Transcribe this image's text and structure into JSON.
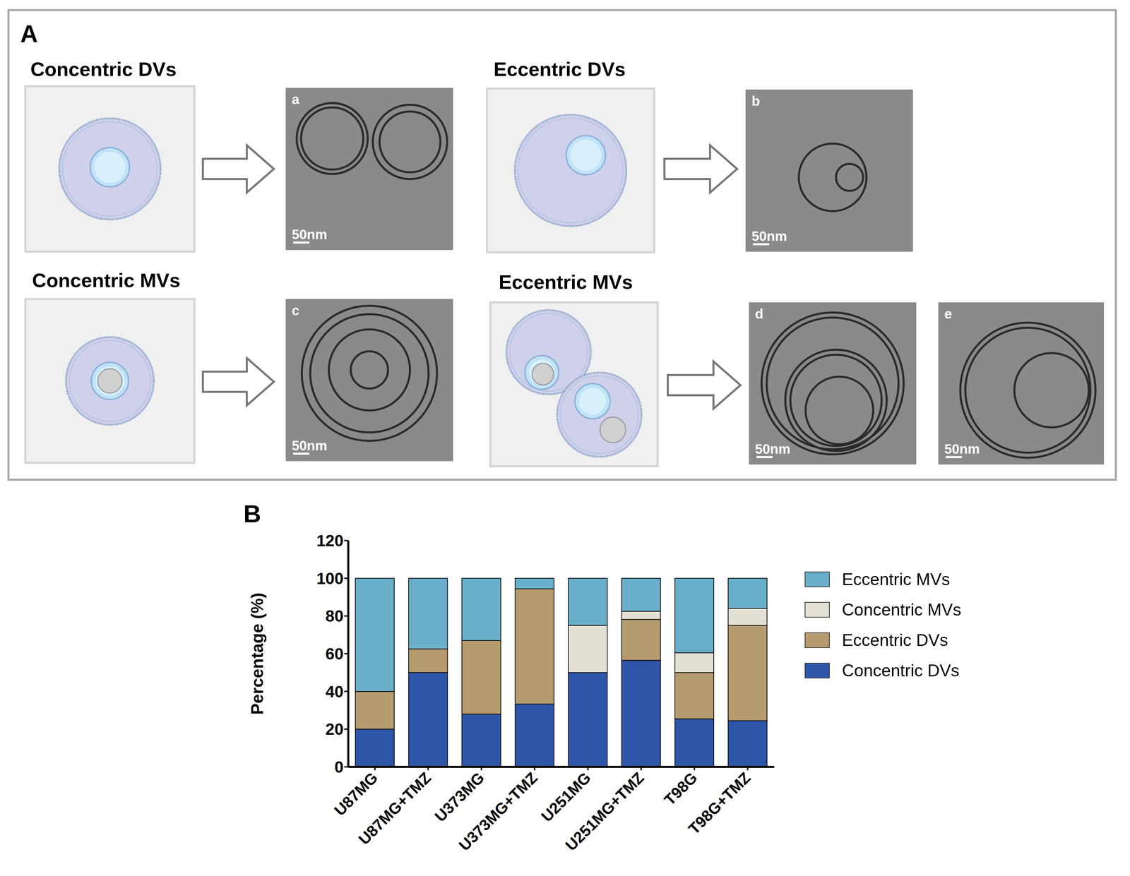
{
  "diagram": {
    "label": "A",
    "panels": [
      {
        "title": "Concentric DVs",
        "images": [
          {
            "label": "a",
            "scale_bar": "50nm"
          }
        ]
      },
      {
        "title": "Eccentric DVs",
        "images": [
          {
            "label": "b",
            "scale_bar": "50nm"
          }
        ]
      },
      {
        "title": "Concentric MVs",
        "images": [
          {
            "label": "c",
            "scale_bar": "50nm"
          }
        ]
      },
      {
        "title": "Eccentric MVs",
        "images": [
          {
            "label": "d",
            "scale_bar": "50nm"
          },
          {
            "label": "e",
            "scale_bar": "50nm"
          }
        ]
      }
    ]
  },
  "chart_data": {
    "label": "B",
    "type": "bar",
    "stacked": true,
    "y_label": "Percentage (%)",
    "categories": [
      "U87MG",
      "U87MG+TMZ",
      "U373MG",
      "U373MG+TMZ",
      "U251MG",
      "U251MG+TMZ",
      "T98G",
      "T98G+TMZ"
    ],
    "series": [
      {
        "name": "Concentric DVs",
        "color": "#2e56a8",
        "values": [
          20,
          50,
          28,
          33.3,
          50,
          56.5,
          25.5,
          24.5
        ]
      },
      {
        "name": "Eccentric DVs",
        "color": "#b59b6e",
        "values": [
          20,
          12.5,
          39,
          61.1,
          0,
          21.7,
          24.5,
          50.5
        ]
      },
      {
        "name": "Concentric MVs",
        "color": "#e3dfd4",
        "values": [
          0,
          0,
          0,
          0,
          25,
          4.3,
          10.5,
          9
        ]
      },
      {
        "name": "Eccentric MVs",
        "color": "#6aafc9",
        "values": [
          60,
          37.5,
          33,
          5.6,
          25,
          17.5,
          39.5,
          16
        ]
      }
    ],
    "ylim": [
      0,
      120
    ],
    "yticks": [
      0,
      20,
      40,
      60,
      80,
      100,
      120
    ],
    "grid": false,
    "legend": "right"
  }
}
